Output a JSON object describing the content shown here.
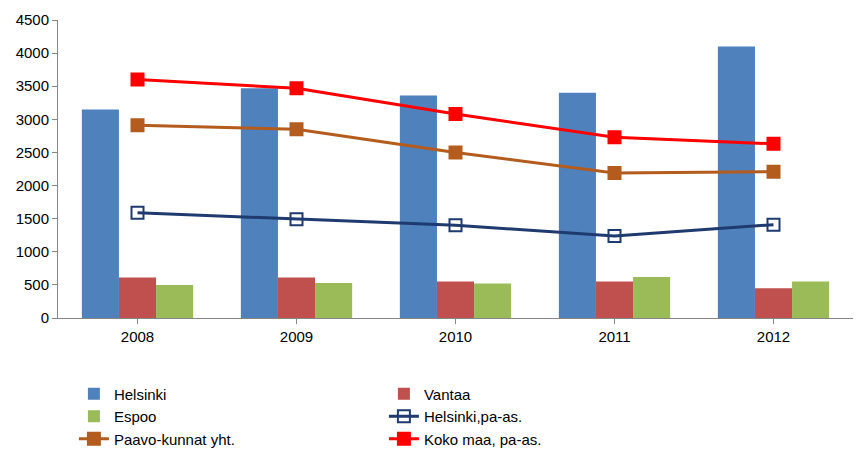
{
  "chart_data": {
    "type": "bar",
    "categories": [
      "2008",
      "2009",
      "2010",
      "2011",
      "2012"
    ],
    "series": [
      {
        "name": "Helsinki",
        "type": "bar",
        "color": "#4f81bd",
        "values": [
          3150,
          3470,
          3360,
          3400,
          4100
        ]
      },
      {
        "name": "Vantaa",
        "type": "bar",
        "color": "#c0504d",
        "values": [
          610,
          610,
          550,
          550,
          450
        ]
      },
      {
        "name": "Espoo",
        "type": "bar",
        "color": "#9bbb59",
        "values": [
          500,
          530,
          520,
          620,
          550
        ]
      },
      {
        "name": "Helsinki,pa-as.",
        "type": "line",
        "color": "#1f3a6e",
        "marker": "square-open",
        "values": [
          1590,
          1490,
          1400,
          1240,
          1410
        ]
      },
      {
        "name": "Paavo-kunnat yht.",
        "type": "line",
        "color": "#b35c1e",
        "marker": "square-cross",
        "values": [
          2910,
          2850,
          2500,
          2190,
          2210
        ]
      },
      {
        "name": "Koko maa, pa-as.",
        "type": "line",
        "color": "#ff0000",
        "marker": "square-x",
        "values": [
          3600,
          3470,
          3080,
          2730,
          2630
        ]
      }
    ],
    "ylim": [
      0,
      4500
    ],
    "yticks": [
      0,
      500,
      1000,
      1500,
      2000,
      2500,
      3000,
      3500,
      4000,
      4500
    ],
    "grid": false,
    "legend": "bottom"
  }
}
